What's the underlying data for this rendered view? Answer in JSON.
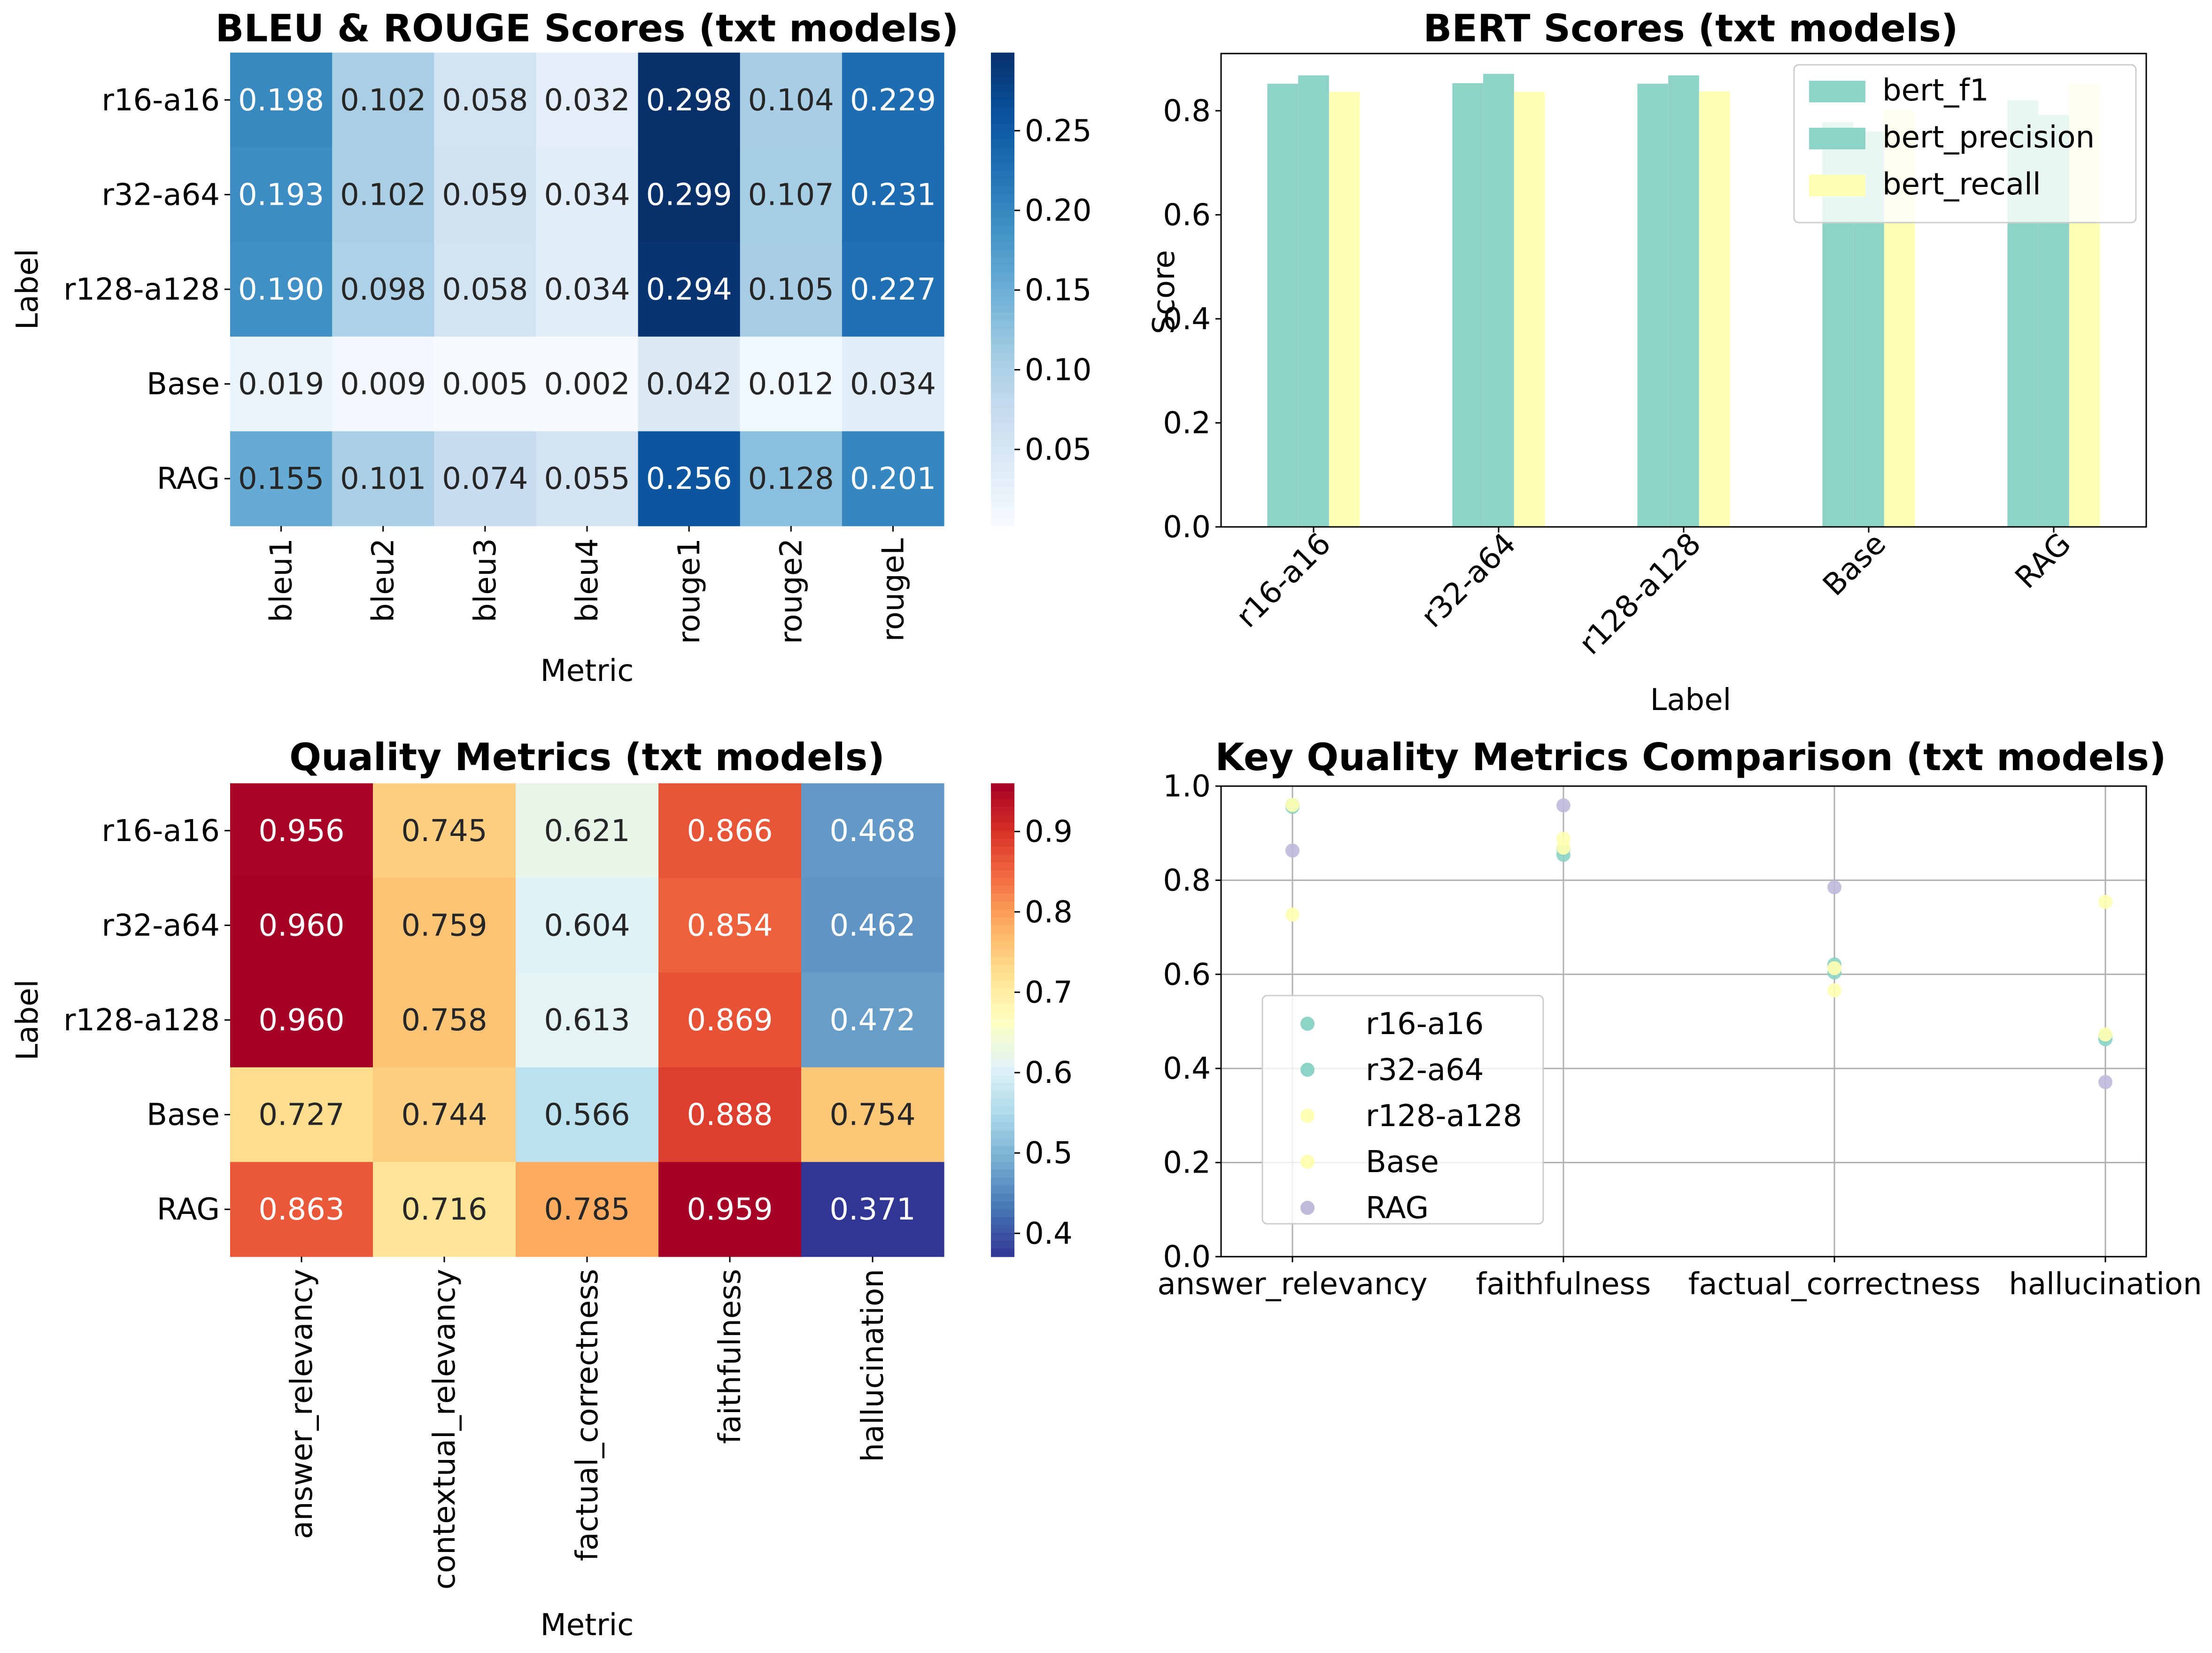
{
  "chart_data": [
    {
      "type": "heatmap",
      "title": "BLEU & ROUGE Scores (txt models)",
      "xlabel": "Metric",
      "ylabel": "Label",
      "rows": [
        "r16-a16",
        "r32-a64",
        "r128-a128",
        "Base",
        "RAG"
      ],
      "columns": [
        "bleu1",
        "bleu2",
        "bleu3",
        "bleu4",
        "rouge1",
        "rouge2",
        "rougeL"
      ],
      "values": [
        [
          0.198,
          0.102,
          0.058,
          0.032,
          0.298,
          0.104,
          0.229
        ],
        [
          0.193,
          0.102,
          0.059,
          0.034,
          0.299,
          0.107,
          0.231
        ],
        [
          0.19,
          0.098,
          0.058,
          0.034,
          0.294,
          0.105,
          0.227
        ],
        [
          0.019,
          0.009,
          0.005,
          0.002,
          0.042,
          0.012,
          0.034
        ],
        [
          0.155,
          0.101,
          0.074,
          0.055,
          0.256,
          0.128,
          0.201
        ]
      ],
      "value_labels": [
        [
          "0.198",
          "0.102",
          "0.058",
          "0.032",
          "0.298",
          "0.104",
          "0.229"
        ],
        [
          "0.193",
          "0.102",
          "0.059",
          "0.034",
          "0.299",
          "0.107",
          "0.231"
        ],
        [
          "0.190",
          "0.098",
          "0.058",
          "0.034",
          "0.294",
          "0.105",
          "0.227"
        ],
        [
          "0.019",
          "0.009",
          "0.005",
          "0.002",
          "0.042",
          "0.012",
          "0.034"
        ],
        [
          "0.155",
          "0.101",
          "0.074",
          "0.055",
          "0.256",
          "0.128",
          "0.201"
        ]
      ],
      "colormap": "Blues",
      "vmin": 0.002,
      "vmax": 0.299,
      "colorbar_ticks": [
        0.05,
        0.1,
        0.15,
        0.2,
        0.25
      ],
      "colorbar_tick_labels": [
        "0.05",
        "0.10",
        "0.15",
        "0.20",
        "0.25"
      ]
    },
    {
      "type": "bar",
      "title": "BERT Scores (txt models)",
      "xlabel": "Label",
      "ylabel": "Score",
      "categories": [
        "r16-a16",
        "r32-a64",
        "r128-a128",
        "Base",
        "RAG"
      ],
      "series": [
        {
          "name": "bert_f1",
          "values": [
            0.852,
            0.853,
            0.852,
            0.778,
            0.82
          ],
          "color": "#8dd3c7"
        },
        {
          "name": "bert_precision",
          "values": [
            0.868,
            0.871,
            0.868,
            0.76,
            0.792
          ],
          "color": "#8dd3c7"
        },
        {
          "name": "bert_recall",
          "values": [
            0.836,
            0.836,
            0.837,
            0.8,
            0.852
          ],
          "color": "#ffffb3"
        }
      ],
      "ylim": [
        0,
        0.91
      ],
      "y_ticks": [
        0.0,
        0.2,
        0.4,
        0.6,
        0.8
      ],
      "y_tick_labels": [
        "0.0",
        "0.2",
        "0.4",
        "0.6",
        "0.8"
      ],
      "grid": false,
      "legend_position": "top-right"
    },
    {
      "type": "heatmap",
      "title": "Quality Metrics (txt models)",
      "xlabel": "Metric",
      "ylabel": "Label",
      "rows": [
        "r16-a16",
        "r32-a64",
        "r128-a128",
        "Base",
        "RAG"
      ],
      "columns": [
        "answer_relevancy",
        "contextual_relevancy",
        "factual_correctness",
        "faithfulness",
        "hallucination"
      ],
      "values": [
        [
          0.956,
          0.745,
          0.621,
          0.866,
          0.468
        ],
        [
          0.96,
          0.759,
          0.604,
          0.854,
          0.462
        ],
        [
          0.96,
          0.758,
          0.613,
          0.869,
          0.472
        ],
        [
          0.727,
          0.744,
          0.566,
          0.888,
          0.754
        ],
        [
          0.863,
          0.716,
          0.785,
          0.959,
          0.371
        ]
      ],
      "value_labels": [
        [
          "0.956",
          "0.745",
          "0.621",
          "0.866",
          "0.468"
        ],
        [
          "0.960",
          "0.759",
          "0.604",
          "0.854",
          "0.462"
        ],
        [
          "0.960",
          "0.758",
          "0.613",
          "0.869",
          "0.472"
        ],
        [
          "0.727",
          "0.744",
          "0.566",
          "0.888",
          "0.754"
        ],
        [
          "0.863",
          "0.716",
          "0.785",
          "0.959",
          "0.371"
        ]
      ],
      "colormap": "RdYlBu_r",
      "vmin": 0.371,
      "vmax": 0.96,
      "colorbar_ticks": [
        0.4,
        0.5,
        0.6,
        0.7,
        0.8,
        0.9
      ],
      "colorbar_tick_labels": [
        "0.4",
        "0.5",
        "0.6",
        "0.7",
        "0.8",
        "0.9"
      ]
    },
    {
      "type": "scatter",
      "title": "Key Quality Metrics Comparison (txt models)",
      "xlabel": "",
      "ylabel": "",
      "categories": [
        "answer_relevancy",
        "faithfulness",
        "factual_correctness",
        "hallucination"
      ],
      "series": [
        {
          "name": "r16-a16",
          "values": [
            0.956,
            0.866,
            0.621,
            0.468
          ],
          "color": "#8dd3c7"
        },
        {
          "name": "r32-a64",
          "values": [
            0.96,
            0.854,
            0.604,
            0.462
          ],
          "color": "#8dd3c7"
        },
        {
          "name": "r128-a128",
          "values": [
            0.96,
            0.869,
            0.613,
            0.472
          ],
          "color": "#ffffb3"
        },
        {
          "name": "Base",
          "values": [
            0.727,
            0.888,
            0.566,
            0.754
          ],
          "color": "#ffffb3"
        },
        {
          "name": "RAG",
          "values": [
            0.863,
            0.959,
            0.785,
            0.371
          ],
          "color": "#bebada"
        }
      ],
      "ylim": [
        0,
        1.0
      ],
      "y_ticks": [
        0.0,
        0.2,
        0.4,
        0.6,
        0.8,
        1.0
      ],
      "y_tick_labels": [
        "0.0",
        "0.2",
        "0.4",
        "0.6",
        "0.8",
        "1.0"
      ],
      "grid": true,
      "legend_position": "center-left"
    }
  ]
}
